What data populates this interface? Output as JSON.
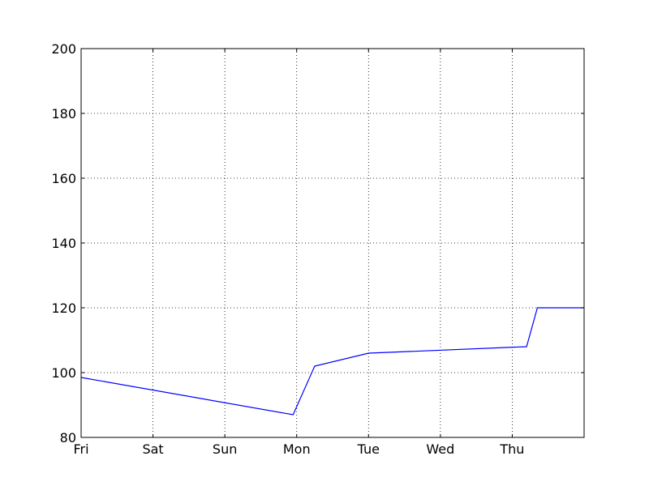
{
  "chart_data": {
    "type": "line",
    "title": "",
    "xlabel": "",
    "ylabel": "",
    "x_tick_labels": [
      "Fri",
      "Sat",
      "Sun",
      "Mon",
      "Tue",
      "Wed",
      "Thu"
    ],
    "x_tick_values": [
      0,
      1,
      2,
      3,
      4,
      5,
      6
    ],
    "xlim": [
      0,
      7
    ],
    "y_ticks": [
      80,
      100,
      120,
      140,
      160,
      180,
      200
    ],
    "ylim": [
      80,
      200
    ],
    "grid": true,
    "series": [
      {
        "color": "#0000ff",
        "x": [
          0,
          2.95,
          3.25,
          4,
          6.2,
          6.35,
          7
        ],
        "y": [
          98.5,
          87,
          102,
          106,
          108,
          120,
          120
        ]
      }
    ]
  }
}
